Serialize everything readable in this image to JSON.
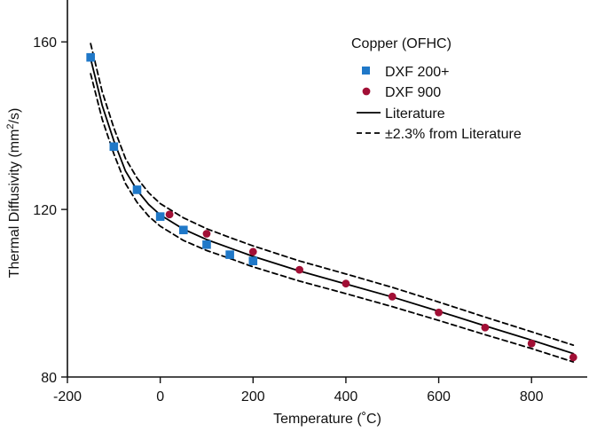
{
  "colors": {
    "axis": "#111111",
    "text": "#111111",
    "dxf200": "#1f78c8",
    "dxf900": "#a10f35",
    "line": "#000000"
  },
  "chart_data": {
    "type": "scatter",
    "title": "",
    "xlabel": "Temperature (˚C)",
    "ylabel": {
      "prefix": "Thermal Diffusivity (mm",
      "sup": "2",
      "suffix": "/s)"
    },
    "xlim": [
      -200,
      920
    ],
    "ylim": [
      80,
      170
    ],
    "x_ticks": [
      -200,
      0,
      200,
      400,
      600,
      800
    ],
    "y_ticks": [
      80,
      120,
      160
    ],
    "grid": false,
    "legend": {
      "placement": "top-right",
      "title": "Copper (OFHC)",
      "entries": [
        "DXF 200+",
        "DXF 900",
        "Literature",
        "±2.3% from Literature"
      ]
    },
    "series": [
      {
        "name": "DXF 200+",
        "kind": "scatter",
        "marker": "square",
        "points": [
          {
            "x": -150,
            "y": 156.3
          },
          {
            "x": -100,
            "y": 135.0
          },
          {
            "x": -50,
            "y": 124.7
          },
          {
            "x": 0,
            "y": 118.3
          },
          {
            "x": 50,
            "y": 115.1
          },
          {
            "x": 100,
            "y": 111.6
          },
          {
            "x": 150,
            "y": 109.2
          },
          {
            "x": 200,
            "y": 107.7
          }
        ]
      },
      {
        "name": "DXF 900",
        "kind": "scatter",
        "marker": "circle",
        "points": [
          {
            "x": 20,
            "y": 118.8
          },
          {
            "x": 100,
            "y": 114.2
          },
          {
            "x": 200,
            "y": 109.9
          },
          {
            "x": 300,
            "y": 105.6
          },
          {
            "x": 400,
            "y": 102.3
          },
          {
            "x": 500,
            "y": 99.2
          },
          {
            "x": 600,
            "y": 95.4
          },
          {
            "x": 700,
            "y": 91.8
          },
          {
            "x": 800,
            "y": 88.0
          },
          {
            "x": 890,
            "y": 84.7
          }
        ]
      },
      {
        "name": "Literature",
        "kind": "line",
        "style": "solid",
        "points": [
          {
            "x": -150,
            "y": 156.0
          },
          {
            "x": -125,
            "y": 144.8
          },
          {
            "x": -100,
            "y": 136.4
          },
          {
            "x": -75,
            "y": 129.2
          },
          {
            "x": -50,
            "y": 124.6
          },
          {
            "x": -25,
            "y": 121.2
          },
          {
            "x": 0,
            "y": 118.7
          },
          {
            "x": 50,
            "y": 115.3
          },
          {
            "x": 100,
            "y": 112.8
          },
          {
            "x": 150,
            "y": 110.8
          },
          {
            "x": 200,
            "y": 108.8
          },
          {
            "x": 300,
            "y": 105.3
          },
          {
            "x": 400,
            "y": 102.2
          },
          {
            "x": 500,
            "y": 99.1
          },
          {
            "x": 600,
            "y": 95.7
          },
          {
            "x": 700,
            "y": 92.2
          },
          {
            "x": 800,
            "y": 88.8
          },
          {
            "x": 890,
            "y": 85.6
          }
        ]
      },
      {
        "name": "±2.3% from Literature",
        "kind": "line",
        "style": "dashed",
        "band": "upper",
        "points": [
          {
            "x": -150,
            "y": 159.6
          },
          {
            "x": -125,
            "y": 148.1
          },
          {
            "x": -100,
            "y": 139.5
          },
          {
            "x": -75,
            "y": 132.2
          },
          {
            "x": -50,
            "y": 127.5
          },
          {
            "x": -25,
            "y": 124.0
          },
          {
            "x": 0,
            "y": 121.4
          },
          {
            "x": 50,
            "y": 118.0
          },
          {
            "x": 100,
            "y": 115.4
          },
          {
            "x": 150,
            "y": 113.3
          },
          {
            "x": 200,
            "y": 111.3
          },
          {
            "x": 300,
            "y": 107.7
          },
          {
            "x": 400,
            "y": 104.6
          },
          {
            "x": 500,
            "y": 101.4
          },
          {
            "x": 600,
            "y": 97.9
          },
          {
            "x": 700,
            "y": 94.3
          },
          {
            "x": 800,
            "y": 90.8
          },
          {
            "x": 890,
            "y": 87.6
          }
        ]
      },
      {
        "name": "±2.3% from Literature",
        "kind": "line",
        "style": "dashed",
        "band": "lower",
        "points": [
          {
            "x": -150,
            "y": 152.4
          },
          {
            "x": -125,
            "y": 141.5
          },
          {
            "x": -100,
            "y": 133.3
          },
          {
            "x": -75,
            "y": 126.2
          },
          {
            "x": -50,
            "y": 121.7
          },
          {
            "x": -25,
            "y": 118.4
          },
          {
            "x": 0,
            "y": 116.0
          },
          {
            "x": 50,
            "y": 112.6
          },
          {
            "x": 100,
            "y": 110.2
          },
          {
            "x": 150,
            "y": 108.3
          },
          {
            "x": 200,
            "y": 106.3
          },
          {
            "x": 300,
            "y": 102.9
          },
          {
            "x": 400,
            "y": 99.9
          },
          {
            "x": 500,
            "y": 96.8
          },
          {
            "x": 600,
            "y": 93.5
          },
          {
            "x": 700,
            "y": 90.1
          },
          {
            "x": 800,
            "y": 86.8
          },
          {
            "x": 890,
            "y": 83.6
          }
        ]
      }
    ]
  }
}
